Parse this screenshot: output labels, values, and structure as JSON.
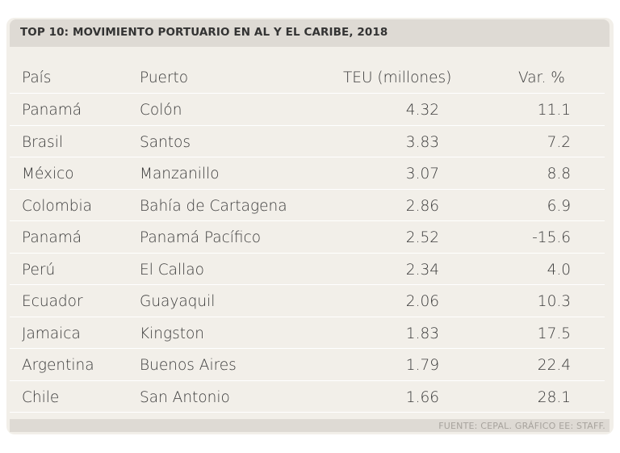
{
  "title": "TOP 10: MOVIMIENTO PORTUARIO EN AL Y EL CARIBE, 2018",
  "source": "FUENTE: CEPAL. GRÁFICO EE: STAFF.",
  "chart_data": {
    "type": "table",
    "title": "TOP 10: MOVIMIENTO PORTUARIO EN AL Y EL CARIBE, 2018",
    "columns": [
      "País",
      "Puerto",
      "TEU (millones)",
      "Var. %"
    ],
    "rows": [
      {
        "pais": "Panamá",
        "puerto": "Colón",
        "teu": "4.32",
        "var": "11.1"
      },
      {
        "pais": "Brasil",
        "puerto": "Santos",
        "teu": "3.83",
        "var": "7.2"
      },
      {
        "pais": "México",
        "puerto": "Manzanillo",
        "teu": "3.07",
        "var": "8.8"
      },
      {
        "pais": "Colombia",
        "puerto": "Bahía de Cartagena",
        "teu": "2.86",
        "var": "6.9"
      },
      {
        "pais": "Panamá",
        "puerto": "Panamá Pacífico",
        "teu": "2.52",
        "var": "-15.6"
      },
      {
        "pais": "Perú",
        "puerto": "El Callao",
        "teu": "2.34",
        "var": "4.0"
      },
      {
        "pais": "Ecuador",
        "puerto": "Guayaquil",
        "teu": "2.06",
        "var": "10.3"
      },
      {
        "pais": "Jamaica",
        "puerto": "Kingston",
        "teu": "1.83",
        "var": "17.5"
      },
      {
        "pais": "Argentina",
        "puerto": "Buenos Aires",
        "teu": "1.79",
        "var": "22.4"
      },
      {
        "pais": "Chile",
        "puerto": "San Antonio",
        "teu": "1.66",
        "var": "28.1"
      }
    ]
  },
  "colors": {
    "panel": "#f2efe9",
    "title_bar": "#dedad4",
    "text": "#3a3a3a",
    "source_text": "#a7a39d"
  }
}
